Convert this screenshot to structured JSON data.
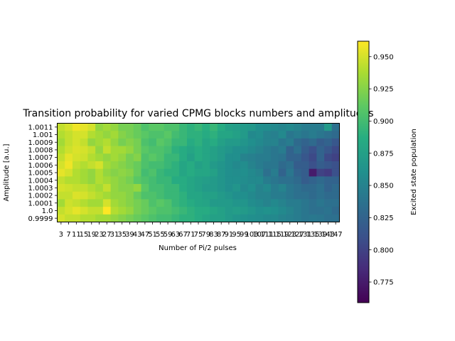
{
  "chart_data": {
    "type": "heatmap",
    "title": "Transition probability for varied CPMG blocks numbers and amplitudes",
    "xlabel": "Number of Pi/2 pulses",
    "ylabel": "Amplitude [a.u.]",
    "colorbar_label": "Excited state population",
    "colormap": "viridis",
    "color_range": [
      0.759,
      0.962
    ],
    "colorbar_ticks": [
      0.775,
      0.8,
      0.825,
      0.85,
      0.875,
      0.9,
      0.925,
      0.95
    ],
    "colorbar_tick_labels": [
      "0.775",
      "0.800",
      "0.825",
      "0.850",
      "0.875",
      "0.900",
      "0.925",
      "0.950"
    ],
    "x_tick_labels": [
      "3",
      "7",
      "11",
      "15",
      "19",
      "23",
      "27",
      "31",
      "35",
      "39",
      "43",
      "47",
      "51",
      "55",
      "59",
      "63",
      "67",
      "71",
      "75",
      "79",
      "83",
      "87",
      "91",
      "95",
      "99",
      "103",
      "107",
      "111",
      "115",
      "119",
      "123",
      "127",
      "131",
      "135",
      "139",
      "143",
      "147"
    ],
    "y_tick_labels": [
      "1.0011",
      "1.001",
      "1.0009",
      "1.0008",
      "1.0007",
      "1.0006",
      "1.0005",
      "1.0004",
      "1.0003",
      "1.0002",
      "1.0001",
      "1.0",
      "0.9999"
    ],
    "values": [
      [
        0.945,
        0.95,
        0.958,
        0.955,
        0.95,
        0.93,
        0.935,
        0.93,
        0.92,
        0.92,
        0.915,
        0.905,
        0.91,
        0.91,
        0.905,
        0.905,
        0.895,
        0.89,
        0.895,
        0.888,
        0.895,
        0.885,
        0.875,
        0.872,
        0.87,
        0.868,
        0.86,
        0.858,
        0.855,
        0.852,
        0.855,
        0.85,
        0.845,
        0.845,
        0.845,
        0.87,
        0.835
      ],
      [
        0.94,
        0.945,
        0.95,
        0.95,
        0.94,
        0.935,
        0.93,
        0.935,
        0.925,
        0.92,
        0.915,
        0.91,
        0.905,
        0.905,
        0.91,
        0.9,
        0.895,
        0.89,
        0.89,
        0.885,
        0.89,
        0.88,
        0.88,
        0.875,
        0.87,
        0.855,
        0.858,
        0.85,
        0.848,
        0.855,
        0.84,
        0.845,
        0.84,
        0.845,
        0.84,
        0.835,
        0.83
      ],
      [
        0.935,
        0.945,
        0.95,
        0.945,
        0.93,
        0.935,
        0.94,
        0.93,
        0.92,
        0.925,
        0.92,
        0.905,
        0.9,
        0.91,
        0.905,
        0.895,
        0.895,
        0.885,
        0.89,
        0.88,
        0.885,
        0.875,
        0.87,
        0.87,
        0.865,
        0.86,
        0.855,
        0.85,
        0.85,
        0.84,
        0.845,
        0.83,
        0.825,
        0.83,
        0.82,
        0.825,
        0.815
      ],
      [
        0.94,
        0.948,
        0.952,
        0.95,
        0.945,
        0.93,
        0.945,
        0.935,
        0.935,
        0.93,
        0.92,
        0.91,
        0.905,
        0.905,
        0.9,
        0.89,
        0.885,
        0.88,
        0.885,
        0.88,
        0.875,
        0.87,
        0.865,
        0.86,
        0.86,
        0.855,
        0.85,
        0.845,
        0.84,
        0.845,
        0.825,
        0.835,
        0.82,
        0.81,
        0.825,
        0.815,
        0.805
      ],
      [
        0.945,
        0.955,
        0.95,
        0.948,
        0.94,
        0.935,
        0.93,
        0.935,
        0.93,
        0.92,
        0.925,
        0.905,
        0.91,
        0.905,
        0.895,
        0.895,
        0.885,
        0.875,
        0.885,
        0.88,
        0.875,
        0.87,
        0.86,
        0.86,
        0.85,
        0.848,
        0.845,
        0.845,
        0.84,
        0.838,
        0.825,
        0.825,
        0.815,
        0.805,
        0.825,
        0.805,
        0.8
      ],
      [
        0.95,
        0.958,
        0.945,
        0.94,
        0.945,
        0.95,
        0.935,
        0.93,
        0.925,
        0.92,
        0.915,
        0.905,
        0.9,
        0.9,
        0.895,
        0.89,
        0.88,
        0.885,
        0.875,
        0.88,
        0.87,
        0.865,
        0.86,
        0.855,
        0.858,
        0.85,
        0.845,
        0.84,
        0.84,
        0.83,
        0.835,
        0.82,
        0.82,
        0.81,
        0.82,
        0.815,
        0.81
      ],
      [
        0.955,
        0.95,
        0.94,
        0.935,
        0.93,
        0.94,
        0.93,
        0.925,
        0.928,
        0.925,
        0.915,
        0.9,
        0.905,
        0.895,
        0.89,
        0.89,
        0.88,
        0.885,
        0.88,
        0.88,
        0.875,
        0.865,
        0.86,
        0.858,
        0.86,
        0.855,
        0.85,
        0.835,
        0.845,
        0.825,
        0.84,
        0.825,
        0.82,
        0.775,
        0.8,
        0.795,
        0.81
      ],
      [
        0.945,
        0.94,
        0.94,
        0.935,
        0.93,
        0.94,
        0.935,
        0.93,
        0.925,
        0.92,
        0.91,
        0.905,
        0.9,
        0.895,
        0.895,
        0.885,
        0.885,
        0.88,
        0.875,
        0.872,
        0.87,
        0.865,
        0.86,
        0.86,
        0.858,
        0.855,
        0.855,
        0.845,
        0.84,
        0.835,
        0.835,
        0.83,
        0.82,
        0.825,
        0.83,
        0.825,
        0.825
      ],
      [
        0.95,
        0.948,
        0.945,
        0.945,
        0.94,
        0.935,
        0.945,
        0.93,
        0.925,
        0.925,
        0.93,
        0.91,
        0.9,
        0.9,
        0.895,
        0.895,
        0.885,
        0.88,
        0.875,
        0.87,
        0.87,
        0.865,
        0.86,
        0.865,
        0.855,
        0.86,
        0.85,
        0.855,
        0.845,
        0.85,
        0.84,
        0.835,
        0.83,
        0.83,
        0.835,
        0.825,
        0.83
      ],
      [
        0.945,
        0.945,
        0.952,
        0.95,
        0.945,
        0.94,
        0.935,
        0.93,
        0.93,
        0.925,
        0.915,
        0.905,
        0.905,
        0.9,
        0.895,
        0.895,
        0.89,
        0.88,
        0.88,
        0.875,
        0.875,
        0.87,
        0.865,
        0.86,
        0.86,
        0.855,
        0.85,
        0.85,
        0.845,
        0.845,
        0.84,
        0.835,
        0.835,
        0.83,
        0.835,
        0.83,
        0.83
      ],
      [
        0.935,
        0.948,
        0.945,
        0.94,
        0.935,
        0.935,
        0.95,
        0.935,
        0.93,
        0.925,
        0.92,
        0.915,
        0.905,
        0.91,
        0.905,
        0.895,
        0.89,
        0.885,
        0.88,
        0.878,
        0.87,
        0.87,
        0.87,
        0.865,
        0.865,
        0.858,
        0.855,
        0.85,
        0.855,
        0.85,
        0.845,
        0.845,
        0.84,
        0.835,
        0.84,
        0.835,
        0.835
      ],
      [
        0.945,
        0.95,
        0.955,
        0.95,
        0.945,
        0.945,
        0.962,
        0.94,
        0.935,
        0.93,
        0.92,
        0.915,
        0.91,
        0.905,
        0.905,
        0.9,
        0.895,
        0.89,
        0.885,
        0.885,
        0.88,
        0.875,
        0.87,
        0.872,
        0.87,
        0.865,
        0.86,
        0.862,
        0.86,
        0.855,
        0.85,
        0.845,
        0.84,
        0.835,
        0.835,
        0.838,
        0.83
      ],
      [
        0.95,
        0.945,
        0.945,
        0.94,
        0.94,
        0.935,
        0.935,
        0.93,
        0.925,
        0.92,
        0.915,
        0.91,
        0.905,
        0.9,
        0.9,
        0.895,
        0.89,
        0.89,
        0.885,
        0.88,
        0.875,
        0.875,
        0.87,
        0.865,
        0.862,
        0.86,
        0.858,
        0.855,
        0.855,
        0.85,
        0.848,
        0.845,
        0.84,
        0.842,
        0.84,
        0.835,
        0.835
      ]
    ]
  }
}
